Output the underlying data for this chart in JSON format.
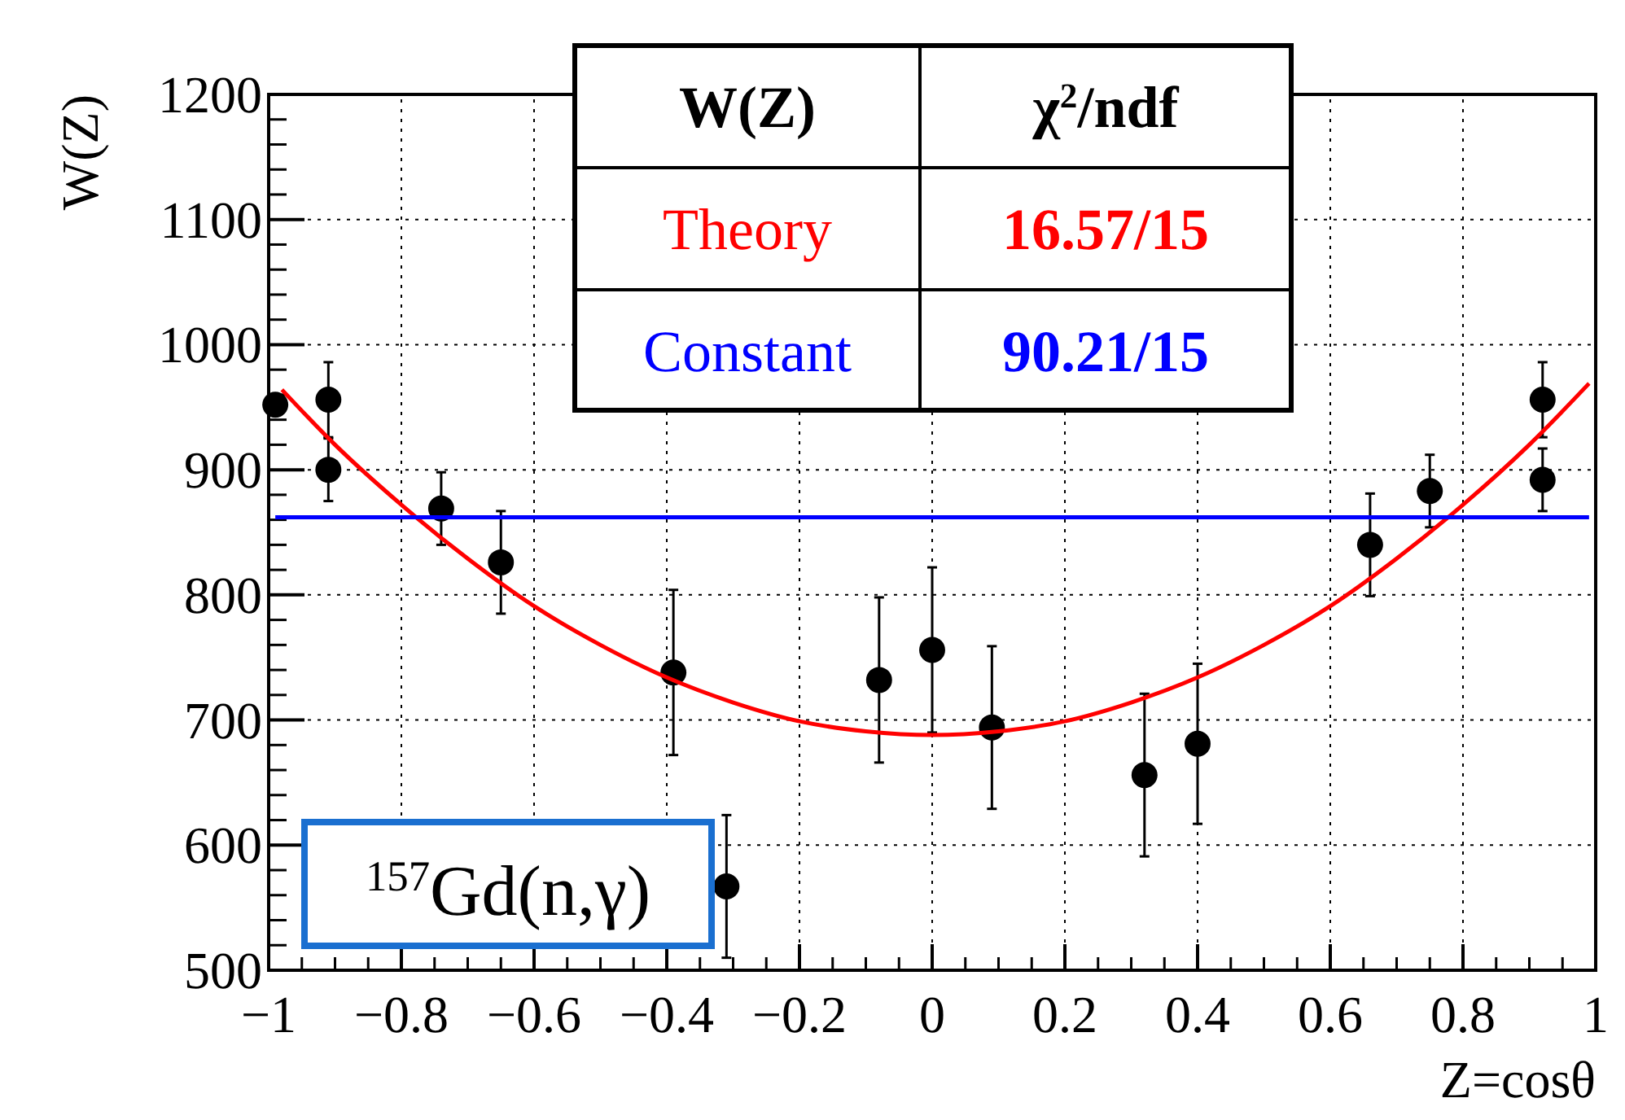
{
  "chart_data": {
    "type": "scatter",
    "xlabel": "Z=cosθ",
    "ylabel": "W(Z)",
    "xlim": [
      -1,
      1
    ],
    "ylim": [
      500,
      1200
    ],
    "xticks": [
      {
        "value": -1,
        "label": "−1"
      },
      {
        "value": -0.8,
        "label": "−0.8"
      },
      {
        "value": -0.6,
        "label": "−0.6"
      },
      {
        "value": -0.4,
        "label": "−0.4"
      },
      {
        "value": -0.2,
        "label": "−0.2"
      },
      0,
      0.2,
      0.4,
      0.6,
      0.8,
      1
    ],
    "yticks": [
      500,
      600,
      700,
      800,
      900,
      1000,
      1100,
      1200
    ],
    "grid": true,
    "legend": "top",
    "series": [
      {
        "type": "scatter",
        "marker": "circle",
        "color": "#000000",
        "x": [
          -0.99,
          -0.91,
          -0.91,
          -0.74,
          -0.65,
          -0.39,
          -0.31,
          -0.08,
          0,
          0.09,
          0.32,
          0.4,
          0.66,
          0.75,
          0.92,
          0.92
        ],
        "values": [
          952,
          956,
          900,
          869,
          826,
          738,
          567,
          732,
          756,
          694,
          656,
          681,
          840,
          883,
          892,
          956
        ],
        "errors": [
          null,
          30,
          25,
          29,
          41,
          66,
          57,
          66,
          66,
          65,
          65,
          64,
          41,
          29,
          25,
          30
        ]
      },
      {
        "type": "line",
        "marker": "none",
        "name": "Theory",
        "color": "#ff0000",
        "x": [
          -0.98,
          -0.9,
          -0.8,
          -0.7,
          -0.6,
          -0.5,
          -0.4,
          -0.3,
          -0.2,
          -0.1,
          0,
          0.1,
          0.2,
          0.3,
          0.4,
          0.5,
          0.6,
          0.7,
          0.8,
          0.9,
          0.99
        ],
        "values": [
          964,
          920,
          872,
          829,
          791,
          760,
          734,
          714,
          699,
          691,
          688,
          691,
          699,
          714,
          734,
          760,
          791,
          829,
          872,
          920,
          969
        ]
      },
      {
        "type": "line",
        "marker": "none",
        "name": "Constant",
        "color": "#0000ff",
        "x": [
          -0.99,
          0.99
        ],
        "values": [
          862,
          862
        ]
      }
    ],
    "annotations": [
      "W(Z)",
      "χ$^{2}$/ndf",
      "16.57/15",
      "90.21/15",
      "$^{157}$Gd(n,γ)"
    ]
  }
}
